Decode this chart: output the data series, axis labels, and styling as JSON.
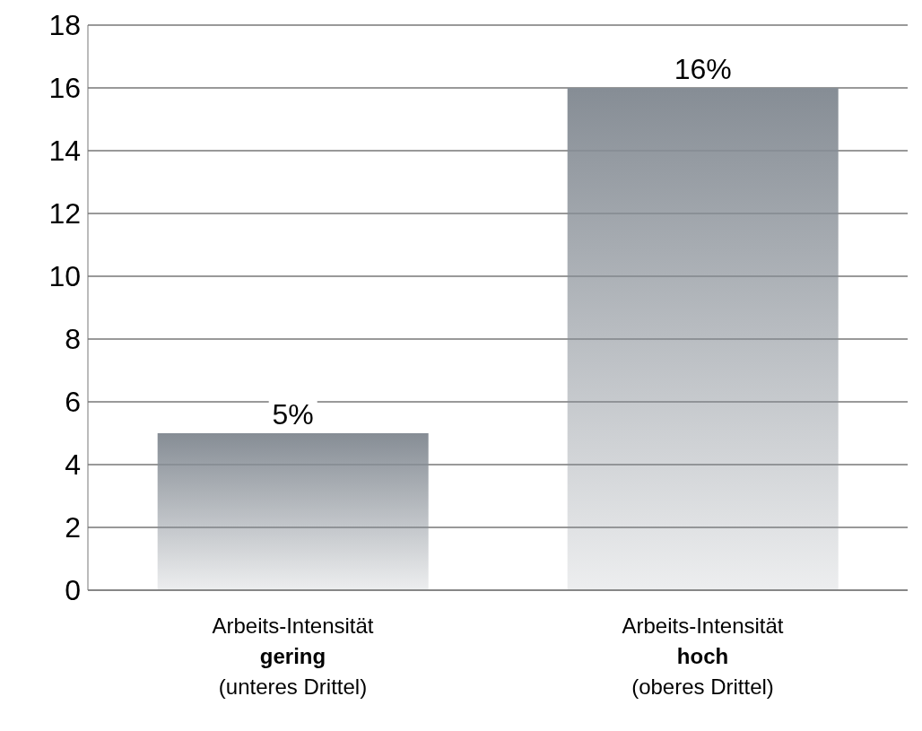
{
  "chart_data": {
    "type": "bar",
    "categories": [
      "Arbeits-Intensität\ngering\n(unteres Drittel)",
      "Arbeits-Intensität\nhoch\n(oberes Drittel)"
    ],
    "values": [
      5,
      16
    ],
    "value_labels": [
      "5%",
      "16%"
    ],
    "color": "#868d95",
    "ylim": [
      0,
      18
    ],
    "yticks": [
      0,
      2,
      4,
      6,
      8,
      10,
      12,
      14,
      16,
      18
    ],
    "grid": "y"
  }
}
